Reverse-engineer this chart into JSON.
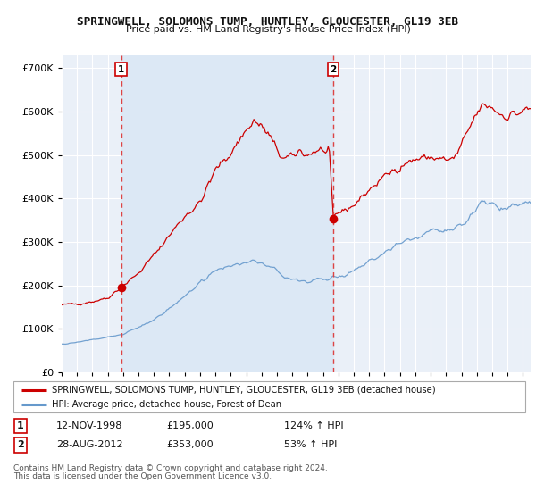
{
  "title": "SPRINGWELL, SOLOMONS TUMP, HUNTLEY, GLOUCESTER, GL19 3EB",
  "subtitle": "Price paid vs. HM Land Registry's House Price Index (HPI)",
  "xlim_start": 1995.0,
  "xlim_end": 2025.5,
  "ylim_min": 0,
  "ylim_max": 730000,
  "sale1_date": 1998.87,
  "sale1_price": 195000,
  "sale2_date": 2012.65,
  "sale2_price": 353000,
  "sale1_text": "12-NOV-1998",
  "sale1_amt": "£195,000",
  "sale1_pct": "124% ↑ HPI",
  "sale2_text": "28-AUG-2012",
  "sale2_amt": "£353,000",
  "sale2_pct": "53% ↑ HPI",
  "red_line_color": "#cc0000",
  "blue_line_color": "#6699cc",
  "shade_color": "#dce8f5",
  "dashed_color": "#dd4444",
  "marker_color": "#cc0000",
  "legend_label_red": "SPRINGWELL, SOLOMONS TUMP, HUNTLEY, GLOUCESTER, GL19 3EB (detached house)",
  "legend_label_blue": "HPI: Average price, detached house, Forest of Dean",
  "footnote1": "Contains HM Land Registry data © Crown copyright and database right 2024.",
  "footnote2": "This data is licensed under the Open Government Licence v3.0.",
  "ytick_labels": [
    "£0",
    "£100K",
    "£200K",
    "£300K",
    "£400K",
    "£500K",
    "£600K",
    "£700K"
  ],
  "ytick_values": [
    0,
    100000,
    200000,
    300000,
    400000,
    500000,
    600000,
    700000
  ],
  "plot_bg_color": "#eaf0f8",
  "grid_color": "#ffffff",
  "fig_bg_color": "#ffffff"
}
